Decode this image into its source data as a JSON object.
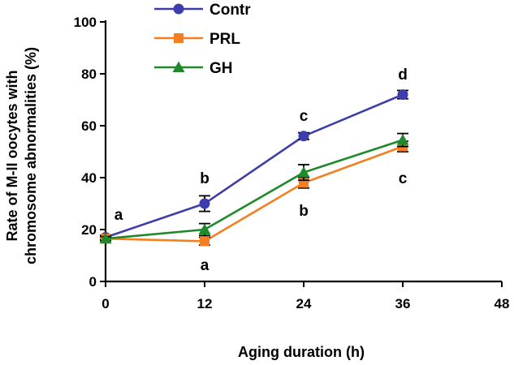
{
  "chart_data": {
    "type": "line",
    "title": "",
    "xlabel": "Aging duration (h)",
    "ylabel_lines": [
      "Rate of M-II oocytes with",
      "chromosome abnormalities (%)"
    ],
    "x_ticks": [
      0,
      12,
      24,
      36,
      48
    ],
    "y_ticks": [
      0,
      20,
      40,
      60,
      80,
      100
    ],
    "xlim": [
      0,
      48
    ],
    "ylim": [
      0,
      100
    ],
    "grid": false,
    "legend_position": "top-left",
    "series": [
      {
        "name": "Contr",
        "color": "#3d3dab",
        "marker": "circle",
        "x": [
          0,
          12,
          24,
          36
        ],
        "values": [
          17,
          30,
          56,
          72
        ],
        "errors": [
          0.8,
          3,
          1.3,
          1.6
        ]
      },
      {
        "name": "PRL",
        "color": "#f57f20",
        "marker": "square",
        "x": [
          0,
          12,
          24,
          36
        ],
        "values": [
          16.5,
          15.5,
          38,
          52
        ],
        "errors": [
          0.8,
          1.5,
          2,
          2
        ]
      },
      {
        "name": "GH",
        "color": "#1f8a2c",
        "marker": "triangle",
        "x": [
          0,
          12,
          24,
          36
        ],
        "values": [
          16.5,
          20,
          42,
          54.5
        ],
        "errors": [
          0.8,
          2.3,
          3,
          2.5
        ]
      }
    ],
    "annotations": [
      {
        "text": "a",
        "x": 0,
        "y": 26
      },
      {
        "text": "b",
        "x": 12,
        "y": 40
      },
      {
        "text": "a",
        "x": 12,
        "y": 6.5
      },
      {
        "text": "c",
        "x": 24,
        "y": 64
      },
      {
        "text": "b",
        "x": 24,
        "y": 27.5
      },
      {
        "text": "d",
        "x": 36,
        "y": 80
      },
      {
        "text": "c",
        "x": 36,
        "y": 40
      }
    ]
  }
}
